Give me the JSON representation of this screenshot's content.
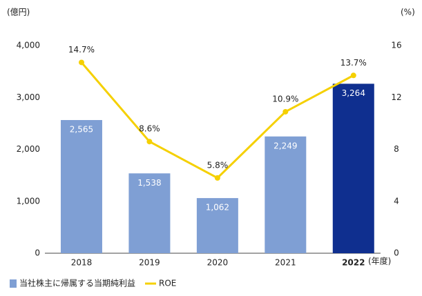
{
  "chart_data": {
    "type": "bar-line",
    "y_unit_label": "(億円)",
    "y2_unit_label": "(%)",
    "x_unit_label": "(年度)",
    "categories": [
      "2018",
      "2019",
      "2020",
      "2021",
      "2022"
    ],
    "series": [
      {
        "name": "当社株主に帰属する当期純利益",
        "type": "bar",
        "color": "#7f9fd4",
        "colors": [
          "#7f9fd4",
          "#7f9fd4",
          "#7f9fd4",
          "#7f9fd4",
          "#0f2f8f"
        ],
        "values": [
          2565,
          1538,
          1062,
          2249,
          3264
        ],
        "value_labels": [
          "2,565",
          "1,538",
          "1,062",
          "2,249",
          "3,264"
        ]
      },
      {
        "name": "ROE",
        "type": "line",
        "axis": "y2",
        "color": "#f5d000",
        "values": [
          14.7,
          8.6,
          5.8,
          10.9,
          13.7
        ],
        "value_labels": [
          "14.7%",
          "8.6%",
          "5.8%",
          "10.9%",
          "13.7%"
        ]
      }
    ],
    "ylim": [
      0,
      4000
    ],
    "yticks": [
      0,
      {
        "value": 1000,
        "label": "1,000"
      },
      {
        "value": 2000,
        "label": "2,000"
      },
      {
        "value": 3000,
        "label": "3,000"
      },
      {
        "value": 4000,
        "label": "4,000"
      }
    ],
    "y2lim": [
      0,
      16
    ],
    "y2ticks": [
      0,
      4,
      8,
      12,
      16
    ],
    "highlight_category": 4,
    "grid": false
  }
}
